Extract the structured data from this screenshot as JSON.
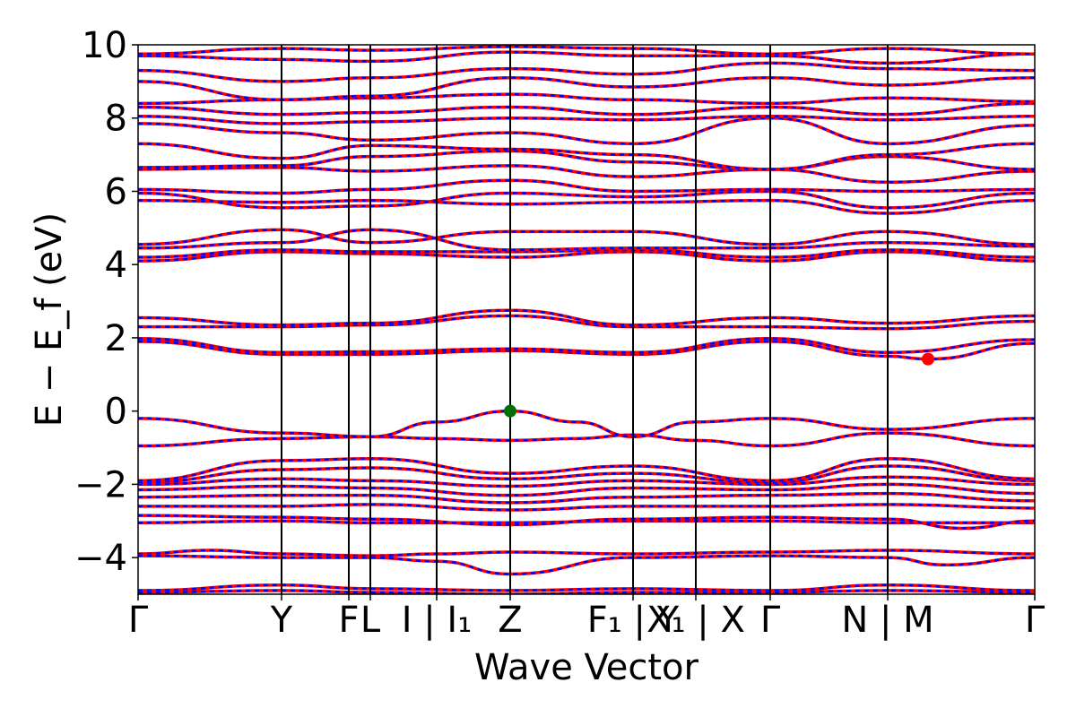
{
  "chart_data": {
    "type": "line",
    "xlabel": "Wave Vector",
    "ylabel": "E − E_f (eV)",
    "ylim": [
      -5,
      10
    ],
    "yticks": [
      -4,
      -2,
      0,
      2,
      4,
      6,
      8,
      10
    ],
    "ytick_labels": [
      "−4",
      "−2",
      "0",
      "2",
      "4",
      "6",
      "8",
      "10"
    ],
    "kpath_ticks": [
      {
        "label": "Γ",
        "k": 0.0
      },
      {
        "label": "Y",
        "k": 0.16
      },
      {
        "label": "F",
        "k": 0.235
      },
      {
        "label": "L",
        "k": 0.259
      },
      {
        "label": "I | I₁",
        "k": 0.333
      },
      {
        "label": "Z",
        "k": 0.415
      },
      {
        "label": "F₁ | Y",
        "k": 0.552
      },
      {
        "label": "X₁ | X",
        "k": 0.622
      },
      {
        "label": "Γ",
        "k": 0.705
      },
      {
        "label": "N | M",
        "k": 0.836
      },
      {
        "label": "Γ",
        "k": 1.0
      }
    ],
    "series": [
      {
        "style": "solid",
        "color": "#ff0000"
      },
      {
        "style": "dashed",
        "color": "#0000ff"
      }
    ],
    "markers": [
      {
        "name": "VBM",
        "k": 0.415,
        "e": 0.0,
        "color": "#007000"
      },
      {
        "name": "CBM",
        "k": 0.881,
        "e": 1.42,
        "color": "#ff0000"
      }
    ],
    "bands": [
      {
        "x": [
          0,
          0.16,
          0.26,
          0.415,
          0.55,
          0.705,
          0.836,
          1
        ],
        "y": [
          -4.9,
          -4.75,
          -4.85,
          -4.9,
          -4.85,
          -4.9,
          -4.75,
          -4.9
        ]
      },
      {
        "x": [
          0,
          0.16,
          0.26,
          0.415,
          0.55,
          0.705,
          0.836,
          1
        ],
        "y": [
          -4.95,
          -4.9,
          -4.95,
          -5.0,
          -4.95,
          -4.95,
          -4.9,
          -4.95
        ]
      },
      {
        "x": [
          0,
          0.08,
          0.16,
          0.26,
          0.333,
          0.415,
          0.55,
          0.705,
          0.836,
          1
        ],
        "y": [
          -3.9,
          -3.8,
          -3.9,
          -3.95,
          -3.9,
          -3.85,
          -3.9,
          -3.85,
          -3.8,
          -3.9
        ]
      },
      {
        "x": [
          0,
          0.16,
          0.26,
          0.333,
          0.415,
          0.55,
          0.705,
          0.836,
          0.9,
          1
        ],
        "y": [
          -3.95,
          -4.0,
          -4.0,
          -4.1,
          -4.45,
          -4.0,
          -3.95,
          -4.0,
          -4.2,
          -4.0
        ]
      },
      {
        "x": [
          0,
          0.16,
          0.26,
          0.415,
          0.55,
          0.705,
          0.836,
          1
        ],
        "y": [
          -3.05,
          -3.0,
          -3.05,
          -3.05,
          -3.0,
          -3.0,
          -3.05,
          -3.05
        ]
      },
      {
        "x": [
          0,
          0.16,
          0.26,
          0.415,
          0.55,
          0.705,
          0.836,
          0.92,
          1
        ],
        "y": [
          -2.85,
          -2.9,
          -2.95,
          -3.1,
          -2.95,
          -2.9,
          -2.95,
          -3.2,
          -3.0
        ]
      },
      {
        "x": [
          0,
          0.16,
          0.26,
          0.415,
          0.55,
          0.705,
          0.836,
          1
        ],
        "y": [
          -2.6,
          -2.6,
          -2.55,
          -2.7,
          -2.6,
          -2.6,
          -2.55,
          -2.65
        ]
      },
      {
        "x": [
          0,
          0.16,
          0.26,
          0.415,
          0.55,
          0.705,
          0.836,
          1
        ],
        "y": [
          -2.35,
          -2.3,
          -2.3,
          -2.5,
          -2.35,
          -2.3,
          -2.25,
          -2.45
        ]
      },
      {
        "x": [
          0,
          0.16,
          0.26,
          0.415,
          0.55,
          0.705,
          0.836,
          1
        ],
        "y": [
          -2.15,
          -2.05,
          -2.1,
          -2.3,
          -2.1,
          -2.15,
          -2.0,
          -2.25
        ]
      },
      {
        "x": [
          0,
          0.16,
          0.26,
          0.415,
          0.55,
          0.705,
          0.836,
          1
        ],
        "y": [
          -2.0,
          -1.85,
          -1.9,
          -2.05,
          -1.9,
          -2.0,
          -1.8,
          -2.0
        ]
      },
      {
        "x": [
          0,
          0.16,
          0.26,
          0.415,
          0.55,
          0.705,
          0.836,
          1
        ],
        "y": [
          -1.95,
          -1.6,
          -1.55,
          -1.85,
          -1.7,
          -1.95,
          -1.5,
          -1.9
        ]
      },
      {
        "x": [
          0,
          0.16,
          0.26,
          0.415,
          0.55,
          0.705,
          0.836,
          1
        ],
        "y": [
          -1.9,
          -1.35,
          -1.3,
          -1.7,
          -1.5,
          -1.9,
          -1.3,
          -1.85
        ]
      },
      {
        "x": [
          0,
          0.16,
          0.26,
          0.333,
          0.415,
          0.49,
          0.552,
          0.62,
          0.705,
          0.836,
          1
        ],
        "y": [
          -0.95,
          -0.75,
          -0.7,
          -0.75,
          -0.8,
          -0.75,
          -0.65,
          -0.8,
          -0.95,
          -0.6,
          -0.95
        ]
      },
      {
        "x": [
          0,
          0.16,
          0.26,
          0.333,
          0.415,
          0.49,
          0.552,
          0.62,
          0.705,
          0.836,
          1
        ],
        "y": [
          -0.2,
          -0.6,
          -0.7,
          -0.3,
          0.0,
          -0.3,
          -0.7,
          -0.3,
          -0.2,
          -0.5,
          -0.2
        ]
      },
      {
        "x": [
          0,
          0.16,
          0.26,
          0.415,
          0.552,
          0.705,
          0.836,
          0.881,
          1
        ],
        "y": [
          1.9,
          1.55,
          1.55,
          1.65,
          1.55,
          1.9,
          1.5,
          1.42,
          1.85
        ]
      },
      {
        "x": [
          0,
          0.16,
          0.26,
          0.415,
          0.552,
          0.705,
          0.836,
          1
        ],
        "y": [
          1.98,
          1.6,
          1.62,
          1.7,
          1.6,
          1.98,
          1.6,
          1.95
        ]
      },
      {
        "x": [
          0,
          0.16,
          0.26,
          0.415,
          0.552,
          0.705,
          0.836,
          1
        ],
        "y": [
          2.3,
          2.3,
          2.35,
          2.6,
          2.3,
          2.3,
          2.25,
          2.45
        ]
      },
      {
        "x": [
          0,
          0.16,
          0.26,
          0.415,
          0.552,
          0.705,
          0.836,
          1
        ],
        "y": [
          2.55,
          2.35,
          2.4,
          2.75,
          2.35,
          2.55,
          2.4,
          2.6
        ]
      },
      {
        "x": [
          0,
          0.16,
          0.26,
          0.415,
          0.552,
          0.705,
          0.836,
          1
        ],
        "y": [
          4.1,
          4.35,
          4.3,
          4.2,
          4.35,
          4.1,
          4.35,
          4.1
        ]
      },
      {
        "x": [
          0,
          0.16,
          0.26,
          0.415,
          0.552,
          0.705,
          0.836,
          1
        ],
        "y": [
          4.2,
          4.4,
          4.35,
          4.35,
          4.4,
          4.2,
          4.4,
          4.2
        ]
      },
      {
        "x": [
          0,
          0.16,
          0.26,
          0.415,
          0.552,
          0.705,
          0.836,
          1
        ],
        "y": [
          4.45,
          4.6,
          4.95,
          4.4,
          4.45,
          4.45,
          4.6,
          4.5
        ]
      },
      {
        "x": [
          0,
          0.16,
          0.26,
          0.415,
          0.552,
          0.705,
          0.836,
          1
        ],
        "y": [
          4.55,
          4.95,
          4.6,
          4.9,
          4.9,
          4.55,
          4.9,
          4.55
        ]
      },
      {
        "x": [
          0,
          0.16,
          0.26,
          0.415,
          0.552,
          0.705,
          0.836,
          1
        ],
        "y": [
          5.75,
          5.7,
          5.75,
          5.65,
          5.7,
          5.75,
          5.4,
          5.75
        ]
      },
      {
        "x": [
          0,
          0.16,
          0.26,
          0.415,
          0.552,
          0.705,
          0.836,
          1
        ],
        "y": [
          5.95,
          5.55,
          5.6,
          5.95,
          5.85,
          6.0,
          5.55,
          5.95
        ]
      },
      {
        "x": [
          0,
          0.16,
          0.26,
          0.415,
          0.552,
          0.705,
          0.836,
          1
        ],
        "y": [
          6.05,
          5.95,
          6.05,
          6.3,
          6.0,
          6.05,
          6.0,
          6.05
        ]
      },
      {
        "x": [
          0,
          0.16,
          0.26,
          0.415,
          0.552,
          0.705,
          0.836,
          1
        ],
        "y": [
          6.6,
          6.65,
          6.55,
          6.7,
          6.4,
          6.6,
          6.25,
          6.55
        ]
      },
      {
        "x": [
          0,
          0.16,
          0.26,
          0.415,
          0.552,
          0.705,
          0.836,
          1
        ],
        "y": [
          6.65,
          6.7,
          6.95,
          7.1,
          6.8,
          6.6,
          6.95,
          6.6
        ]
      },
      {
        "x": [
          0,
          0.16,
          0.26,
          0.415,
          0.552,
          0.705,
          0.836,
          1
        ],
        "y": [
          7.3,
          6.9,
          7.25,
          7.15,
          7.0,
          6.6,
          7.0,
          7.3
        ]
      },
      {
        "x": [
          0,
          0.16,
          0.26,
          0.415,
          0.552,
          0.705,
          0.836,
          1
        ],
        "y": [
          7.85,
          7.6,
          7.4,
          7.6,
          7.3,
          8.0,
          7.3,
          7.8
        ]
      },
      {
        "x": [
          0,
          0.16,
          0.26,
          0.415,
          0.552,
          0.705,
          0.836,
          1
        ],
        "y": [
          8.05,
          7.85,
          7.9,
          8.0,
          7.95,
          8.05,
          7.95,
          8.05
        ]
      },
      {
        "x": [
          0,
          0.16,
          0.26,
          0.415,
          0.552,
          0.705,
          0.836,
          1
        ],
        "y": [
          8.3,
          8.1,
          8.15,
          8.3,
          8.1,
          8.3,
          8.1,
          8.4
        ]
      },
      {
        "x": [
          0,
          0.16,
          0.26,
          0.415,
          0.552,
          0.705,
          0.836,
          1
        ],
        "y": [
          8.4,
          8.5,
          8.55,
          8.65,
          8.5,
          8.4,
          8.55,
          8.45
        ]
      },
      {
        "x": [
          0,
          0.16,
          0.26,
          0.415,
          0.552,
          0.705,
          0.836,
          1
        ],
        "y": [
          9.0,
          8.5,
          8.6,
          9.1,
          8.85,
          9.1,
          8.9,
          9.1
        ]
      },
      {
        "x": [
          0,
          0.16,
          0.26,
          0.415,
          0.552,
          0.705,
          0.836,
          1
        ],
        "y": [
          9.3,
          9.0,
          9.1,
          9.35,
          9.2,
          9.5,
          9.35,
          9.3
        ]
      },
      {
        "x": [
          0,
          0.16,
          0.26,
          0.415,
          0.552,
          0.705,
          0.836,
          1
        ],
        "y": [
          9.7,
          9.6,
          9.55,
          9.8,
          9.7,
          9.7,
          9.5,
          9.75
        ]
      },
      {
        "x": [
          0,
          0.16,
          0.26,
          0.415,
          0.552,
          0.705,
          0.836,
          1
        ],
        "y": [
          9.75,
          9.9,
          9.85,
          9.95,
          9.9,
          9.75,
          9.9,
          9.75
        ]
      }
    ]
  }
}
